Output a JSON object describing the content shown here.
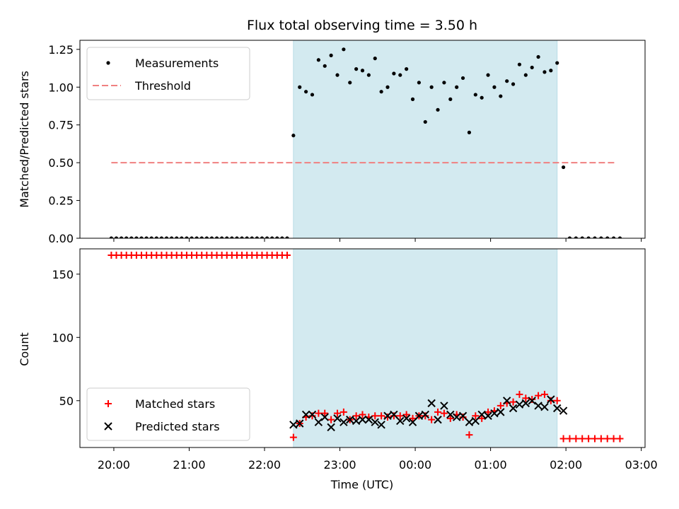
{
  "chart_data": {
    "title": "Flux total observing time = 3.50 h",
    "xlabel": "Time (UTC)",
    "x_ticks": [
      "20:00",
      "21:00",
      "22:00",
      "23:00",
      "00:00",
      "01:00",
      "02:00",
      "03:00"
    ],
    "observing_window": {
      "start": "22:23",
      "end": "01:53",
      "color": "#d3eaf0"
    },
    "panels": [
      {
        "type": "scatter",
        "ylabel": "Matched/Predicted stars",
        "ylim": [
          0,
          1.31
        ],
        "y_ticks": [
          "0.00",
          "0.25",
          "0.50",
          "0.75",
          "1.00",
          "1.25"
        ],
        "legend_position": "top-left",
        "threshold": {
          "name": "Threshold",
          "value": 0.5,
          "x_start": "19:58",
          "x_end": "02:40",
          "color": "#f08080"
        },
        "series": [
          {
            "name": "Measurements",
            "color": "#000000",
            "marker": "dot",
            "points": [
              [
                "19:58",
                0
              ],
              [
                "20:02",
                0
              ],
              [
                "20:06",
                0
              ],
              [
                "20:10",
                0
              ],
              [
                "20:14",
                0
              ],
              [
                "20:18",
                0
              ],
              [
                "20:22",
                0
              ],
              [
                "20:26",
                0
              ],
              [
                "20:30",
                0
              ],
              [
                "20:34",
                0
              ],
              [
                "20:38",
                0
              ],
              [
                "20:42",
                0
              ],
              [
                "20:46",
                0
              ],
              [
                "20:50",
                0
              ],
              [
                "20:54",
                0
              ],
              [
                "20:58",
                0
              ],
              [
                "21:02",
                0
              ],
              [
                "21:06",
                0
              ],
              [
                "21:10",
                0
              ],
              [
                "21:14",
                0
              ],
              [
                "21:18",
                0
              ],
              [
                "21:22",
                0
              ],
              [
                "21:26",
                0
              ],
              [
                "21:30",
                0
              ],
              [
                "21:34",
                0
              ],
              [
                "21:38",
                0
              ],
              [
                "21:42",
                0
              ],
              [
                "21:46",
                0
              ],
              [
                "21:50",
                0
              ],
              [
                "21:54",
                0
              ],
              [
                "21:58",
                0
              ],
              [
                "22:02",
                0
              ],
              [
                "22:06",
                0
              ],
              [
                "22:10",
                0
              ],
              [
                "22:14",
                0
              ],
              [
                "22:18",
                0
              ],
              [
                "22:23",
                0.68
              ],
              [
                "22:28",
                1.0
              ],
              [
                "22:33",
                0.97
              ],
              [
                "22:38",
                0.95
              ],
              [
                "22:43",
                1.18
              ],
              [
                "22:48",
                1.14
              ],
              [
                "22:53",
                1.21
              ],
              [
                "22:58",
                1.08
              ],
              [
                "23:03",
                1.25
              ],
              [
                "23:08",
                1.03
              ],
              [
                "23:13",
                1.12
              ],
              [
                "23:18",
                1.11
              ],
              [
                "23:23",
                1.08
              ],
              [
                "23:28",
                1.19
              ],
              [
                "23:33",
                0.97
              ],
              [
                "23:38",
                1.0
              ],
              [
                "23:43",
                1.09
              ],
              [
                "23:48",
                1.08
              ],
              [
                "23:53",
                1.12
              ],
              [
                "23:58",
                0.92
              ],
              [
                "00:03",
                1.03
              ],
              [
                "00:08",
                0.77
              ],
              [
                "00:13",
                1.0
              ],
              [
                "00:18",
                0.85
              ],
              [
                "00:23",
                1.03
              ],
              [
                "00:28",
                0.92
              ],
              [
                "00:33",
                1.0
              ],
              [
                "00:38",
                1.06
              ],
              [
                "00:43",
                0.7
              ],
              [
                "00:48",
                0.95
              ],
              [
                "00:53",
                0.93
              ],
              [
                "00:58",
                1.08
              ],
              [
                "01:03",
                1.0
              ],
              [
                "01:08",
                0.94
              ],
              [
                "01:13",
                1.04
              ],
              [
                "01:18",
                1.02
              ],
              [
                "01:23",
                1.15
              ],
              [
                "01:28",
                1.08
              ],
              [
                "01:33",
                1.13
              ],
              [
                "01:38",
                1.2
              ],
              [
                "01:43",
                1.1
              ],
              [
                "01:48",
                1.11
              ],
              [
                "01:53",
                1.16
              ],
              [
                "01:58",
                0.47
              ],
              [
                "02:03",
                0
              ],
              [
                "02:08",
                0
              ],
              [
                "02:13",
                0
              ],
              [
                "02:18",
                0
              ],
              [
                "02:23",
                0
              ],
              [
                "02:28",
                0
              ],
              [
                "02:33",
                0
              ],
              [
                "02:38",
                0
              ],
              [
                "02:43",
                0
              ]
            ]
          }
        ]
      },
      {
        "type": "scatter",
        "ylabel": "Count",
        "ylim": [
          13,
          170
        ],
        "y_ticks": [
          "50",
          "100",
          "150"
        ],
        "legend_position": "bottom-left",
        "series": [
          {
            "name": "Matched stars",
            "color": "#ff0000",
            "marker": "plus",
            "points": [
              [
                "19:58",
                165
              ],
              [
                "20:02",
                165
              ],
              [
                "20:06",
                165
              ],
              [
                "20:10",
                165
              ],
              [
                "20:14",
                165
              ],
              [
                "20:18",
                165
              ],
              [
                "20:22",
                165
              ],
              [
                "20:26",
                165
              ],
              [
                "20:30",
                165
              ],
              [
                "20:34",
                165
              ],
              [
                "20:38",
                165
              ],
              [
                "20:42",
                165
              ],
              [
                "20:46",
                165
              ],
              [
                "20:50",
                165
              ],
              [
                "20:54",
                165
              ],
              [
                "20:58",
                165
              ],
              [
                "21:02",
                165
              ],
              [
                "21:06",
                165
              ],
              [
                "21:10",
                165
              ],
              [
                "21:14",
                165
              ],
              [
                "21:18",
                165
              ],
              [
                "21:22",
                165
              ],
              [
                "21:26",
                165
              ],
              [
                "21:30",
                165
              ],
              [
                "21:34",
                165
              ],
              [
                "21:38",
                165
              ],
              [
                "21:42",
                165
              ],
              [
                "21:46",
                165
              ],
              [
                "21:50",
                165
              ],
              [
                "21:54",
                165
              ],
              [
                "21:58",
                165
              ],
              [
                "22:02",
                165
              ],
              [
                "22:06",
                165
              ],
              [
                "22:10",
                165
              ],
              [
                "22:14",
                165
              ],
              [
                "22:18",
                165
              ],
              [
                "22:23",
                21
              ],
              [
                "22:28",
                32
              ],
              [
                "22:33",
                37
              ],
              [
                "22:38",
                38
              ],
              [
                "22:43",
                40
              ],
              [
                "22:48",
                40
              ],
              [
                "22:53",
                35
              ],
              [
                "22:58",
                40
              ],
              [
                "23:03",
                41
              ],
              [
                "23:08",
                35
              ],
              [
                "23:13",
                38
              ],
              [
                "23:18",
                39
              ],
              [
                "23:23",
                37
              ],
              [
                "23:28",
                38
              ],
              [
                "23:33",
                38
              ],
              [
                "23:38",
                37
              ],
              [
                "23:43",
                38
              ],
              [
                "23:48",
                38
              ],
              [
                "23:53",
                39
              ],
              [
                "23:58",
                36
              ],
              [
                "00:03",
                38
              ],
              [
                "00:08",
                38
              ],
              [
                "00:13",
                35
              ],
              [
                "00:18",
                41
              ],
              [
                "00:23",
                40
              ],
              [
                "00:28",
                36
              ],
              [
                "00:33",
                39
              ],
              [
                "00:38",
                37
              ],
              [
                "00:43",
                23
              ],
              [
                "00:48",
                38
              ],
              [
                "00:53",
                36
              ],
              [
                "00:58",
                41
              ],
              [
                "01:03",
                42
              ],
              [
                "01:08",
                46
              ],
              [
                "01:13",
                48
              ],
              [
                "01:18",
                49
              ],
              [
                "01:23",
                55
              ],
              [
                "01:28",
                52
              ],
              [
                "01:33",
                51
              ],
              [
                "01:38",
                54
              ],
              [
                "01:43",
                55
              ],
              [
                "01:48",
                50
              ],
              [
                "01:53",
                50
              ],
              [
                "01:58",
                20
              ],
              [
                "02:03",
                20
              ],
              [
                "02:08",
                20
              ],
              [
                "02:13",
                20
              ],
              [
                "02:18",
                20
              ],
              [
                "02:23",
                20
              ],
              [
                "02:28",
                20
              ],
              [
                "02:33",
                20
              ],
              [
                "02:38",
                20
              ],
              [
                "02:43",
                20
              ]
            ]
          },
          {
            "name": "Predicted stars",
            "color": "#000000",
            "marker": "x",
            "points": [
              [
                "22:23",
                31
              ],
              [
                "22:28",
                32
              ],
              [
                "22:33",
                39
              ],
              [
                "22:38",
                39
              ],
              [
                "22:43",
                33
              ],
              [
                "22:48",
                37
              ],
              [
                "22:53",
                29
              ],
              [
                "22:58",
                36
              ],
              [
                "23:03",
                33
              ],
              [
                "23:08",
                35
              ],
              [
                "23:13",
                34
              ],
              [
                "23:18",
                35
              ],
              [
                "23:23",
                35
              ],
              [
                "23:28",
                33
              ],
              [
                "23:33",
                31
              ],
              [
                "23:38",
                38
              ],
              [
                "23:43",
                39
              ],
              [
                "23:48",
                34
              ],
              [
                "23:53",
                36
              ],
              [
                "23:58",
                33
              ],
              [
                "00:03",
                38
              ],
              [
                "00:08",
                39
              ],
              [
                "00:13",
                48
              ],
              [
                "00:18",
                35
              ],
              [
                "00:23",
                46
              ],
              [
                "00:28",
                39
              ],
              [
                "00:33",
                37
              ],
              [
                "00:38",
                38
              ],
              [
                "00:43",
                33
              ],
              [
                "00:48",
                34
              ],
              [
                "00:53",
                39
              ],
              [
                "00:58",
                38
              ],
              [
                "01:03",
                40
              ],
              [
                "01:08",
                41
              ],
              [
                "01:13",
                50
              ],
              [
                "01:18",
                44
              ],
              [
                "01:23",
                47
              ],
              [
                "01:28",
                48
              ],
              [
                "01:33",
                50
              ],
              [
                "01:38",
                46
              ],
              [
                "01:43",
                45
              ],
              [
                "01:48",
                51
              ],
              [
                "01:53",
                44
              ],
              [
                "01:58",
                42
              ]
            ]
          }
        ]
      }
    ]
  }
}
